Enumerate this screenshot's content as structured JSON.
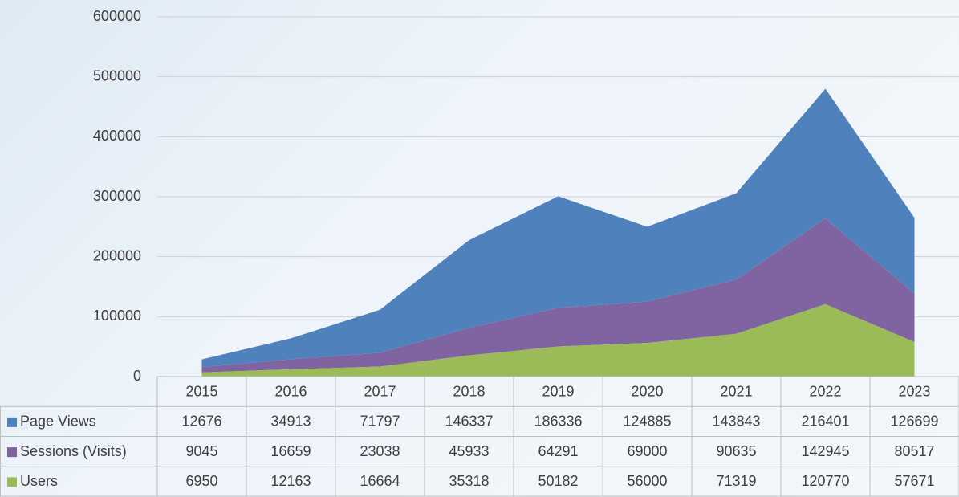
{
  "chart_data": {
    "type": "area",
    "stacked": true,
    "categories": [
      "2015",
      "2016",
      "2017",
      "2018",
      "2019",
      "2020",
      "2021",
      "2022",
      "2023"
    ],
    "series": [
      {
        "name": "Page Views",
        "color": "#4f81bd",
        "values": [
          12676,
          34913,
          71797,
          146337,
          186336,
          124885,
          143843,
          216401,
          126699
        ]
      },
      {
        "name": "Sessions (Visits)",
        "color": "#8064a2",
        "values": [
          9045,
          16659,
          23038,
          45933,
          64291,
          69000,
          90635,
          142945,
          80517
        ]
      },
      {
        "name": "Users",
        "color": "#9bbb59",
        "values": [
          6950,
          12163,
          16664,
          35318,
          50182,
          56000,
          71319,
          120770,
          57671
        ]
      }
    ],
    "ylim": [
      0,
      600000
    ],
    "yticks": [
      0,
      100000,
      200000,
      300000,
      400000,
      500000,
      600000
    ],
    "grid": true,
    "data_table": true
  }
}
